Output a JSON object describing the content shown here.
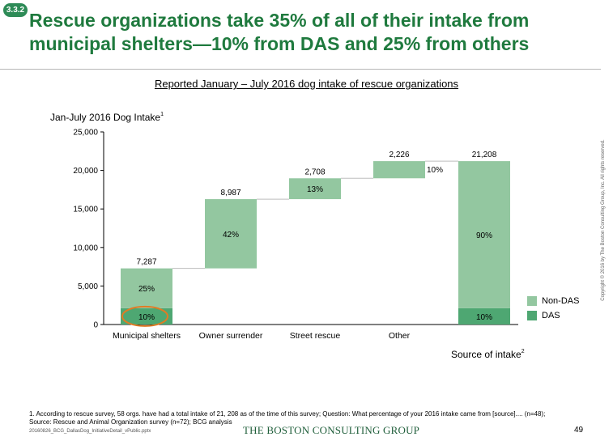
{
  "badge": "3.3.2",
  "title": "Rescue organizations take 35% of all of their intake from municipal shelters—10% from DAS and 25% from others",
  "subtitle": "Reported January – July 2016 dog intake of rescue organizations",
  "chart_label": "Jan-July 2016 Dog Intake",
  "chart_label_note": "1",
  "source_title": "Source of intake",
  "source_title_note": "2",
  "footnote": "1. According to rescue survey, 58 orgs. have had a total intake of 21, 208 as of the time of this survey; Question: What percentage of your 2016 intake came from [source].... (n=48);",
  "source_line": "Source: Rescue and Animal Organization survey (n=72); BCG analysis",
  "file_name": "20160826_BCG_DallasDog_InitiativeDetail_vPublic.pptx",
  "logo": "THE BOSTON CONSULTING GROUP",
  "page_number": "49",
  "copyright": "Copyright © 2016 by The Boston Consulting Group, Inc. All rights reserved.",
  "colors": {
    "title": "#1f7a3e",
    "non_das": "#93c7a0",
    "das": "#4ea772",
    "highlight": "#e07b24"
  },
  "chart_data": {
    "type": "waterfall",
    "categories": [
      "Municipal shelters",
      "Owner surrender",
      "Street rescue",
      "Other",
      ""
    ],
    "yticks": [
      "0",
      "5,000",
      "10,000",
      "15,000",
      "20,000",
      "25,000"
    ],
    "ylim": [
      0,
      25000
    ],
    "bars": [
      {
        "category": "Municipal shelters",
        "base": 0,
        "das": 2121,
        "non_das": 5166,
        "total_label": "7,287",
        "das_label": "10%",
        "non_das_label": "25%",
        "highlight_das": true
      },
      {
        "category": "Owner surrender",
        "base": 7287,
        "das": 0,
        "non_das": 8987,
        "total_label": "8,987",
        "non_das_label": "42%"
      },
      {
        "category": "Street rescue",
        "base": 16274,
        "das": 0,
        "non_das": 2708,
        "total_label": "2,708",
        "non_das_label": "13%"
      },
      {
        "category": "Other",
        "base": 18982,
        "das": 0,
        "non_das": 2226,
        "total_label": "2,226",
        "side_label": "10%"
      },
      {
        "category": "",
        "base": 0,
        "das": 2121,
        "non_das": 19087,
        "total_label": "21,208",
        "das_label": "10%",
        "non_das_label": "90%"
      }
    ],
    "legend": [
      {
        "label": "Non-DAS",
        "color": "#93c7a0"
      },
      {
        "label": "DAS",
        "color": "#4ea772"
      }
    ]
  }
}
